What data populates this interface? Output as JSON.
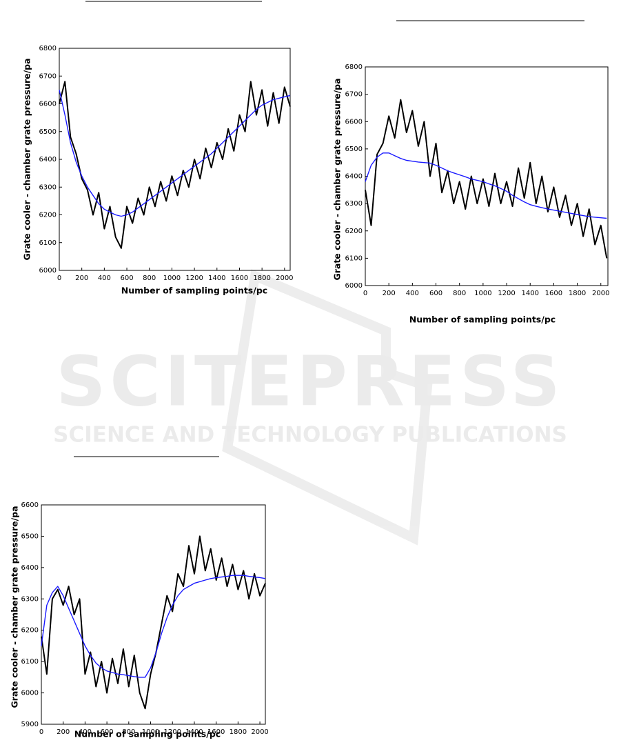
{
  "watermark": {
    "title": "SCITEPRESS",
    "subtitle": "SCIENCE AND TECHNOLOGY PUBLICATIONS"
  },
  "chart_data": [
    {
      "type": "line",
      "x_label": "Number of sampling points/pc",
      "y_label": "Grate cooler - chamber grate pressure/pa",
      "x": [
        0,
        50,
        100,
        150,
        200,
        250,
        300,
        350,
        400,
        450,
        500,
        550,
        600,
        650,
        700,
        750,
        800,
        850,
        900,
        950,
        1000,
        1050,
        1100,
        1150,
        1200,
        1250,
        1300,
        1350,
        1400,
        1450,
        1500,
        1550,
        1600,
        1650,
        1700,
        1750,
        1800,
        1850,
        1900,
        1950,
        2000,
        2050
      ],
      "series": [
        {
          "color": "#000000",
          "values": [
            6600,
            6680,
            6480,
            6420,
            6330,
            6290,
            6200,
            6280,
            6150,
            6230,
            6120,
            6080,
            6230,
            6170,
            6260,
            6200,
            6300,
            6230,
            6320,
            6250,
            6340,
            6270,
            6360,
            6300,
            6400,
            6330,
            6440,
            6370,
            6460,
            6400,
            6510,
            6430,
            6560,
            6500,
            6680,
            6560,
            6650,
            6520,
            6640,
            6530,
            6660,
            6590
          ]
        },
        {
          "color": "#1a1aff",
          "values": [
            6650,
            6560,
            6460,
            6390,
            6340,
            6300,
            6270,
            6240,
            6220,
            6210,
            6200,
            6195,
            6200,
            6210,
            6225,
            6240,
            6255,
            6270,
            6285,
            6300,
            6315,
            6330,
            6345,
            6360,
            6375,
            6390,
            6405,
            6420,
            6440,
            6460,
            6480,
            6500,
            6520,
            6540,
            6560,
            6580,
            6595,
            6605,
            6615,
            6620,
            6625,
            6630
          ]
        }
      ],
      "xlim": [
        0,
        2050
      ],
      "xticks": [
        0,
        200,
        400,
        600,
        800,
        1000,
        1200,
        1400,
        1600,
        1800,
        2000
      ],
      "ylim": [
        6000,
        6800
      ],
      "yticks": [
        6000,
        6100,
        6200,
        6300,
        6400,
        6500,
        6600,
        6700,
        6800
      ],
      "grid": false
    },
    {
      "type": "line",
      "x_label": "Number of sampling points/pc",
      "y_label": "Grate cooler - chamber grate pressure/pa",
      "x": [
        0,
        50,
        100,
        150,
        200,
        250,
        300,
        350,
        400,
        450,
        500,
        550,
        600,
        650,
        700,
        750,
        800,
        850,
        900,
        950,
        1000,
        1050,
        1100,
        1150,
        1200,
        1250,
        1300,
        1350,
        1400,
        1450,
        1500,
        1550,
        1600,
        1650,
        1700,
        1750,
        1800,
        1850,
        1900,
        1950,
        2000,
        2050
      ],
      "series": [
        {
          "color": "#000000",
          "values": [
            6350,
            6220,
            6480,
            6520,
            6620,
            6540,
            6680,
            6560,
            6640,
            6510,
            6600,
            6400,
            6520,
            6340,
            6420,
            6300,
            6380,
            6280,
            6400,
            6300,
            6390,
            6290,
            6410,
            6300,
            6380,
            6290,
            6430,
            6320,
            6450,
            6300,
            6400,
            6270,
            6360,
            6250,
            6330,
            6220,
            6300,
            6180,
            6280,
            6150,
            6220,
            6100
          ]
        },
        {
          "color": "#1a1aff",
          "values": [
            6380,
            6440,
            6470,
            6485,
            6485,
            6475,
            6465,
            6458,
            6455,
            6452,
            6450,
            6448,
            6440,
            6430,
            6420,
            6412,
            6405,
            6398,
            6390,
            6385,
            6380,
            6372,
            6365,
            6355,
            6345,
            6330,
            6318,
            6306,
            6296,
            6290,
            6285,
            6280,
            6276,
            6272,
            6268,
            6264,
            6260,
            6256,
            6252,
            6250,
            6248,
            6246
          ]
        }
      ],
      "xlim": [
        0,
        2060
      ],
      "xticks": [
        0,
        200,
        400,
        600,
        800,
        1000,
        1200,
        1400,
        1600,
        1800,
        2000
      ],
      "ylim": [
        6000,
        6800
      ],
      "yticks": [
        6000,
        6100,
        6200,
        6300,
        6400,
        6500,
        6600,
        6700,
        6800
      ],
      "grid": false
    },
    {
      "type": "line",
      "x_label": "Number of sampling points/pc",
      "y_label": "Grate cooler - chamber grate pressure/pa",
      "x": [
        0,
        50,
        100,
        150,
        200,
        250,
        300,
        350,
        400,
        450,
        500,
        550,
        600,
        650,
        700,
        750,
        800,
        850,
        900,
        950,
        1000,
        1050,
        1100,
        1150,
        1200,
        1250,
        1300,
        1350,
        1400,
        1450,
        1500,
        1550,
        1600,
        1650,
        1700,
        1750,
        1800,
        1850,
        1900,
        1950,
        2000,
        2050
      ],
      "series": [
        {
          "color": "#000000",
          "values": [
            6180,
            6060,
            6300,
            6330,
            6280,
            6340,
            6250,
            6300,
            6060,
            6130,
            6020,
            6100,
            6000,
            6110,
            6030,
            6140,
            6020,
            6120,
            6000,
            5950,
            6060,
            6130,
            6220,
            6310,
            6260,
            6380,
            6340,
            6470,
            6380,
            6500,
            6390,
            6460,
            6360,
            6430,
            6340,
            6410,
            6330,
            6390,
            6300,
            6380,
            6310,
            6350
          ]
        },
        {
          "color": "#1a1aff",
          "values": [
            6150,
            6280,
            6320,
            6340,
            6310,
            6270,
            6230,
            6190,
            6150,
            6120,
            6095,
            6080,
            6070,
            6065,
            6060,
            6058,
            6055,
            6052,
            6050,
            6050,
            6080,
            6130,
            6190,
            6240,
            6280,
            6310,
            6330,
            6340,
            6350,
            6355,
            6360,
            6365,
            6368,
            6370,
            6372,
            6375,
            6375,
            6375,
            6372,
            6370,
            6368,
            6365
          ]
        }
      ],
      "xlim": [
        0,
        2050
      ],
      "xticks": [
        0,
        200,
        400,
        600,
        800,
        1000,
        1200,
        1400,
        1600,
        1800,
        2000
      ],
      "ylim": [
        5900,
        6600
      ],
      "yticks": [
        5900,
        6000,
        6100,
        6200,
        6300,
        6400,
        6500,
        6600
      ],
      "grid": false
    }
  ]
}
